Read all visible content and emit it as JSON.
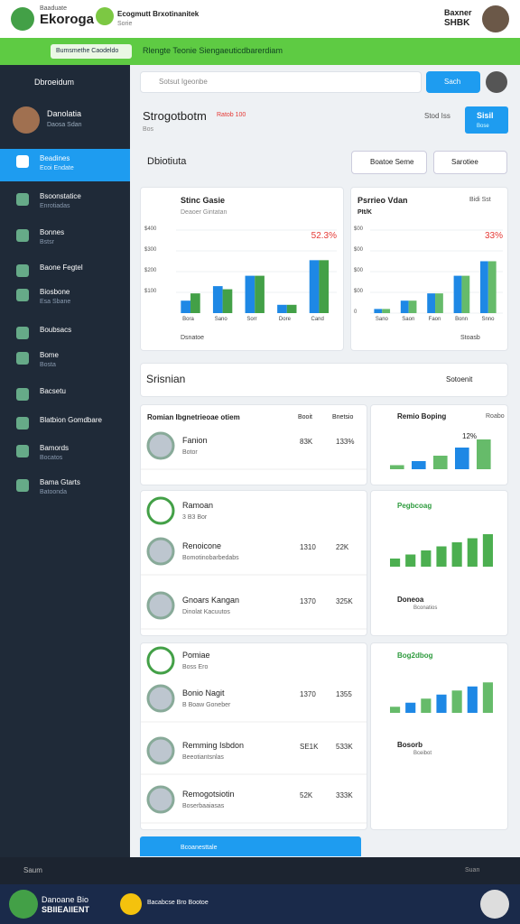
{
  "header": {
    "brand": "Ekoroga",
    "brand_tag": "Baaduate",
    "app": "Ecogmutt Brxotinanitek",
    "app_sub": "Sorie",
    "user": "Baxner",
    "user_sub": "SHBK"
  },
  "address_bar": {
    "url": "Bumsmethe Caodeldo",
    "tab": "Rlengte Teonie Siengaeuticdbarerdiam"
  },
  "sidebar": {
    "title": "Dbroeidum",
    "profile_name": "Danolatia",
    "profile_sub": "Daosa Sdan",
    "items": [
      {
        "label": "Beadines",
        "sub": "Ecoi Endate"
      },
      {
        "label": "Bsoonstatice",
        "sub": "Enrotiadas"
      },
      {
        "label": "Bonnes",
        "sub": "Bstsr"
      },
      {
        "label": "Baone Fegtel"
      },
      {
        "label": "Biosbone",
        "sub": "Esa Sbane"
      },
      {
        "label": "Boubsacs"
      },
      {
        "label": "Bome",
        "sub": "Bosta"
      },
      {
        "label": "Bacsetu"
      },
      {
        "label": "Blatbion Gomdbare"
      },
      {
        "label": "Bamords",
        "sub": "Bocatos"
      },
      {
        "label": "Bama Gtarts",
        "sub": "Batoonda"
      }
    ]
  },
  "toolbar": {
    "search": "Sotsut Igeonbe",
    "button": "Sach"
  },
  "title_block": {
    "title": "Strogotbotm",
    "tag": "Ratob 100",
    "sub": "Bos",
    "meta": "Stod Iss",
    "cta": "Sisil",
    "cta_sub": "Bose"
  },
  "overview": {
    "title": "Dbiotiuta",
    "filter": "Boatoe Seme",
    "sort": "Sarotiee"
  },
  "charts": [
    {
      "title": "Stinc Gasie",
      "sub": "Deaoer Gintatan",
      "change": "52.3%",
      "footer": "Dsnatoe",
      "ylim": [
        0,
        400
      ],
      "yticks": [
        {
          "value": 100,
          "label": "$100"
        },
        {
          "value": 200,
          "label": "$200"
        },
        {
          "value": 300,
          "label": "$300"
        },
        {
          "value": 400,
          "label": "$400"
        }
      ],
      "categories": [
        "Bora",
        "Sano",
        "Sorr",
        "Dore",
        "Cand"
      ],
      "bars": [
        {
          "color": "#1e88e5",
          "values": [
            60,
            130,
            180,
            40,
            255
          ]
        },
        {
          "color": "#43a047",
          "values": [
            95,
            115,
            180,
            40,
            255
          ]
        }
      ]
    },
    {
      "title": "Psrrieo Vdan",
      "sub": "PIt/K",
      "meta": "Bidi Sst",
      "change": "33%",
      "footer": "Stoasb",
      "ylim": [
        0,
        400
      ],
      "yticks": [
        0,
        {
          "value": 100,
          "label": "$00"
        },
        {
          "value": 200,
          "label": "$00"
        },
        {
          "value": 300,
          "label": "$00"
        },
        {
          "value": 400,
          "label": "$00"
        }
      ],
      "categories": [
        "Sano",
        "Saon",
        "Faon",
        "Bonn",
        "Snno"
      ],
      "bars": [
        {
          "color": "#1e88e5",
          "values": [
            20,
            60,
            95,
            180,
            250
          ]
        },
        {
          "color": "#66bb6a",
          "values": [
            20,
            60,
            95,
            180,
            250
          ]
        }
      ]
    }
  ],
  "section": {
    "title": "Srisnian",
    "sort": "Sotoenit"
  },
  "table": {
    "columns": [
      "Romian Ibgnetrieoae otiem",
      "Booit",
      "Bnetsio"
    ],
    "rows": [
      {
        "name": "Fanion",
        "sub": "Botor",
        "v1": "83K",
        "v2": "133%"
      },
      {
        "name": "Ramoan",
        "sub": "3 B3 Bor"
      },
      {
        "name": "Renoicone",
        "sub": "Bomotinobarbedabs",
        "v1": "1310",
        "v2": "22K"
      },
      {
        "name": "Gnoars Kangan",
        "sub": "Dinolat Kacuutos",
        "v1": "1370",
        "v2": "325K"
      },
      {
        "name": "Pomiae",
        "sub": "Boss Ero"
      },
      {
        "name": "Bonio Nagit",
        "sub": "B Boaw Goneber",
        "v1": "1370",
        "v2": "1355"
      },
      {
        "name": "Remming Isbdon",
        "sub": "Beeotiantsnlas",
        "v1": "SE1K",
        "v2": "533K"
      },
      {
        "name": "Remogotsiotin",
        "sub": "Boserbaaiasas",
        "v1": "52K",
        "v2": "333K"
      }
    ]
  },
  "panels": [
    {
      "title": "Remio Boping",
      "meta": "Roabo",
      "change": "12%",
      "ylim": [
        0,
        30
      ],
      "values": [
        3,
        6,
        10,
        16,
        22
      ]
    },
    {
      "title": "Pegbcoag",
      "ylim": [
        0,
        30
      ],
      "values": [
        6,
        9,
        12,
        15,
        18,
        21,
        24
      ]
    },
    {
      "title": "Doneoa",
      "sub": "Bconatios"
    },
    {
      "title": "Bog2dbog",
      "ylim": [
        0,
        40
      ],
      "values": [
        6,
        10,
        14,
        18,
        22,
        26,
        30
      ]
    },
    {
      "title": "Bosorb",
      "sub": "Bceibot"
    }
  ],
  "footer": {
    "banner": "Bcoanesttale",
    "left": "Saum",
    "right": "Suan",
    "app": "Danoane Bio",
    "app_sub": "SBIIEAIIENT",
    "link": "Bacabcse Bro Bootoe"
  }
}
